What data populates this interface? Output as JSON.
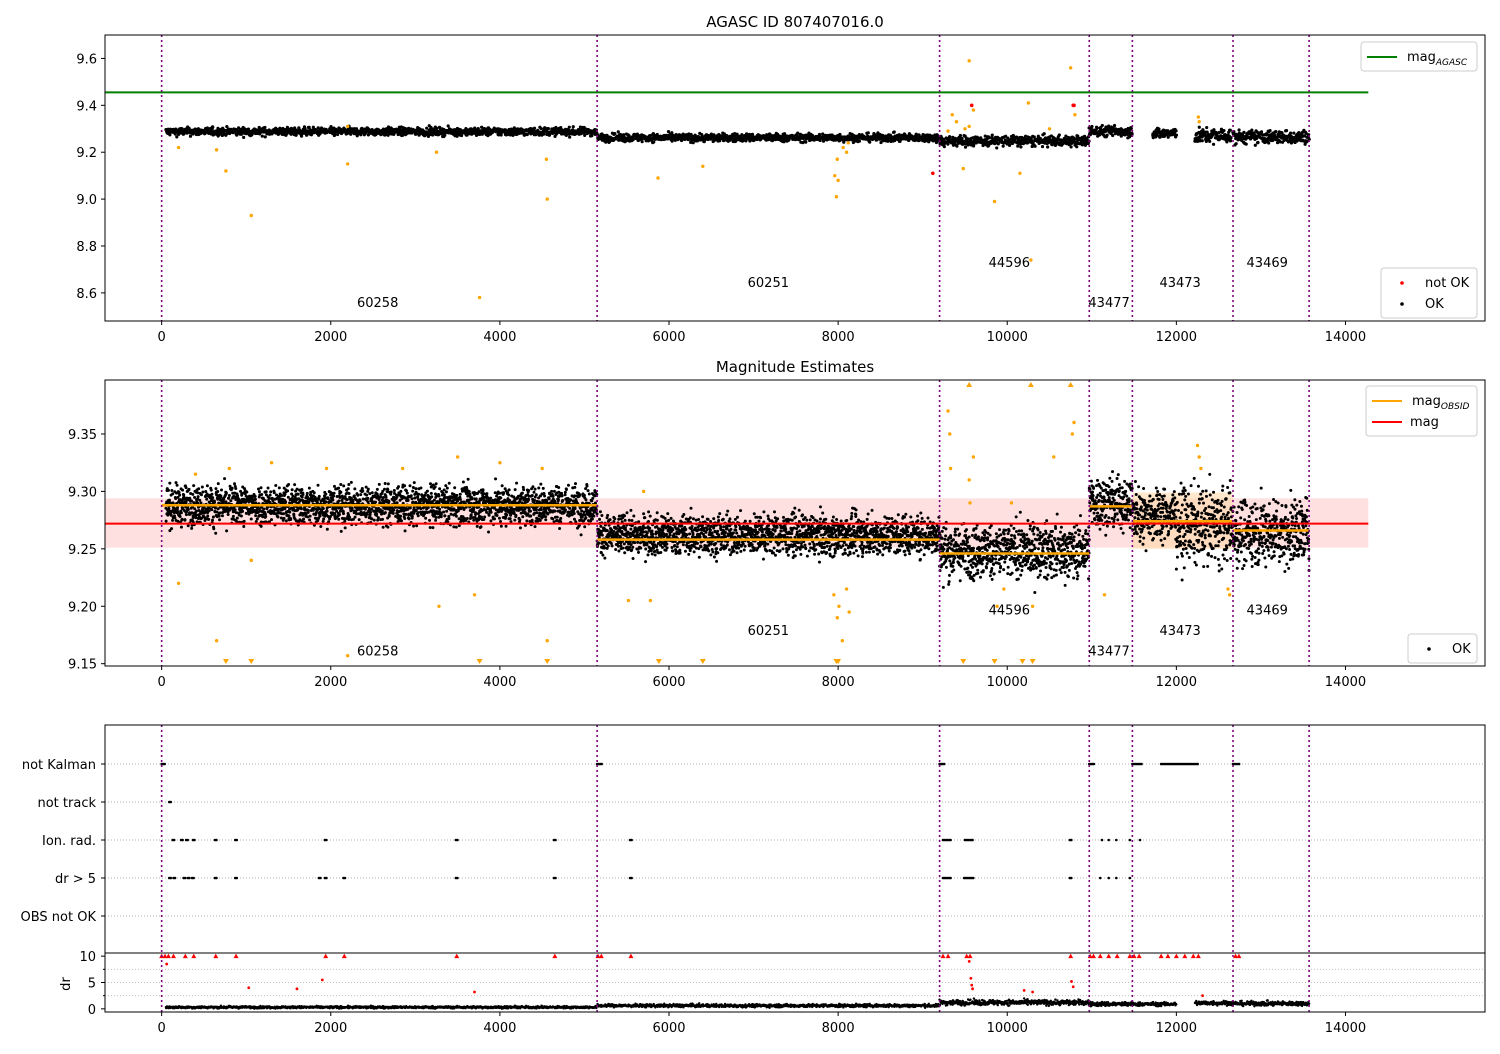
{
  "chart_data": [
    {
      "id": "top",
      "type": "scatter",
      "title": "AGASC ID 807407016.0",
      "xlim": [
        -670,
        15650
      ],
      "ylim": [
        8.48,
        9.7
      ],
      "x_ticks": [
        0,
        2000,
        4000,
        6000,
        8000,
        10000,
        12000,
        14000
      ],
      "x_tick_labels": [
        "0",
        "2000",
        "4000",
        "6000",
        "8000",
        "10000",
        "12000",
        "14000"
      ],
      "y_ticks": [
        8.6,
        8.8,
        9.0,
        9.2,
        9.4,
        9.6
      ],
      "y_tick_labels": [
        "8.6",
        "8.8",
        "9.0",
        "9.2",
        "9.4",
        "9.6"
      ],
      "obs_boundaries": [
        0,
        5150,
        9200,
        10970,
        11480,
        12670,
        13570
      ],
      "obsid_labels": [
        {
          "text": "60258",
          "x": 2310,
          "y": 8.54
        },
        {
          "text": "60251",
          "x": 6930,
          "y": 8.625
        },
        {
          "text": "44596",
          "x": 9780,
          "y": 8.71
        },
        {
          "text": "43477",
          "x": 10960,
          "y": 8.54
        },
        {
          "text": "43473",
          "x": 11800,
          "y": 8.625
        },
        {
          "text": "43469",
          "x": 12830,
          "y": 8.71
        }
      ],
      "mag_agasc": {
        "value": 9.455,
        "x_range": [
          -670,
          14270
        ],
        "color": "#008000"
      },
      "legends": [
        {
          "loc": "upper right",
          "entries": [
            {
              "kind": "line",
              "color": "#008000",
              "base": "mag",
              "sub": "AGASC"
            }
          ]
        },
        {
          "loc": "lower right",
          "entries": [
            {
              "kind": "dot",
              "color": "#ff0000",
              "text": "not OK"
            },
            {
              "kind": "dot",
              "color": "#000000",
              "text": "OK"
            }
          ]
        }
      ],
      "ok_segments": [
        {
          "x": [
            50,
            5150
          ],
          "level": 9.288,
          "spread": 0.012
        },
        {
          "x": [
            5150,
            9200
          ],
          "level": 9.262,
          "spread": 0.012
        },
        {
          "x": [
            9200,
            10970
          ],
          "level": 9.248,
          "spread": 0.016
        },
        {
          "x": [
            10970,
            11480
          ],
          "level": 9.29,
          "spread": 0.016
        },
        {
          "x": [
            11720,
            12000
          ],
          "level": 9.28,
          "spread": 0.016
        },
        {
          "x": [
            12220,
            12650
          ],
          "level": 9.27,
          "spread": 0.022
        },
        {
          "x": [
            12670,
            13570
          ],
          "level": 9.265,
          "spread": 0.02
        }
      ],
      "orange_points": [
        [
          760,
          9.12
        ],
        [
          1060,
          8.93
        ],
        [
          2200,
          9.15
        ],
        [
          3760,
          8.58
        ],
        [
          4560,
          9.0
        ],
        [
          4550,
          9.17
        ],
        [
          200,
          9.22
        ],
        [
          650,
          9.21
        ],
        [
          3250,
          9.2
        ],
        [
          5870,
          9.09
        ],
        [
          6400,
          9.14
        ],
        [
          7980,
          9.01
        ],
        [
          7960,
          9.1
        ],
        [
          8000,
          9.08
        ],
        [
          7990,
          9.17
        ],
        [
          8060,
          9.22
        ],
        [
          9480,
          9.13
        ],
        [
          9550,
          9.59
        ],
        [
          9850,
          8.99
        ],
        [
          10280,
          8.74
        ],
        [
          10750,
          9.56
        ],
        [
          10250,
          9.41
        ],
        [
          9350,
          9.36
        ],
        [
          9400,
          9.33
        ],
        [
          9600,
          9.38
        ],
        [
          10150,
          9.11
        ],
        [
          10800,
          9.36
        ],
        [
          12260,
          9.35
        ],
        [
          12270,
          9.33
        ],
        [
          9550,
          9.31
        ],
        [
          9500,
          9.3
        ],
        [
          8100,
          9.2
        ],
        [
          8120,
          9.24
        ],
        [
          10500,
          9.3
        ],
        [
          9300,
          9.29
        ],
        [
          2200,
          9.31
        ]
      ],
      "red_points": [
        [
          9120,
          9.11
        ],
        [
          9580,
          9.4
        ],
        [
          10780,
          9.4
        ],
        [
          10790,
          9.4
        ]
      ]
    },
    {
      "id": "middle",
      "type": "scatter",
      "title": "Magnitude Estimates",
      "xlim": [
        -670,
        15650
      ],
      "ylim": [
        9.148,
        9.397
      ],
      "x_ticks": [
        0,
        2000,
        4000,
        6000,
        8000,
        10000,
        12000,
        14000
      ],
      "x_tick_labels": [
        "0",
        "2000",
        "4000",
        "6000",
        "8000",
        "10000",
        "12000",
        "14000"
      ],
      "y_ticks": [
        9.15,
        9.2,
        9.25,
        9.3,
        9.35
      ],
      "y_tick_labels": [
        "9.15",
        "9.20",
        "9.25",
        "9.30",
        "9.35"
      ],
      "obs_boundaries": [
        0,
        5150,
        9200,
        10970,
        11480,
        12670,
        13570
      ],
      "obsid_labels": [
        {
          "text": "60258",
          "x": 2310,
          "y": 9.157
        },
        {
          "text": "60251",
          "x": 6930,
          "y": 9.175
        },
        {
          "text": "44596",
          "x": 9780,
          "y": 9.193
        },
        {
          "text": "43477",
          "x": 10960,
          "y": 9.157
        },
        {
          "text": "43473",
          "x": 11800,
          "y": 9.175
        },
        {
          "text": "43469",
          "x": 12830,
          "y": 9.193
        }
      ],
      "mag": {
        "value": 9.272,
        "band": [
          9.251,
          9.294
        ],
        "x_range": [
          -670,
          14270
        ],
        "color": "#ff0000",
        "band_color": "#ffcccc"
      },
      "mag_obsid": [
        {
          "x": [
            0,
            5150
          ],
          "value": 9.288
        },
        {
          "x": [
            5150,
            9200
          ],
          "value": 9.258
        },
        {
          "x": [
            9200,
            10970
          ],
          "value": 9.246
        },
        {
          "x": [
            10970,
            11480
          ],
          "value": 9.287
        },
        {
          "x": [
            11480,
            12670
          ],
          "value": 9.274,
          "band": [
            9.25,
            9.299
          ]
        },
        {
          "x": [
            12670,
            13570
          ],
          "value": 9.266
        }
      ],
      "legends": [
        {
          "loc": "upper right",
          "entries": [
            {
              "kind": "line",
              "color": "#ffa500",
              "base": "mag",
              "sub": "OBSID"
            },
            {
              "kind": "line",
              "color": "#ff0000",
              "text": "mag"
            }
          ]
        },
        {
          "loc": "lower right",
          "entries": [
            {
              "kind": "dot",
              "color": "#000000",
              "text": "OK"
            }
          ]
        }
      ],
      "ok_segments": [
        {
          "x": [
            50,
            5150
          ],
          "level": 9.288,
          "spread": 0.012
        },
        {
          "x": [
            5150,
            9200
          ],
          "level": 9.262,
          "spread": 0.012
        },
        {
          "x": [
            9200,
            10970
          ],
          "level": 9.248,
          "spread": 0.016
        },
        {
          "x": [
            10970,
            11480
          ],
          "level": 9.29,
          "spread": 0.016
        },
        {
          "x": [
            11480,
            12000
          ],
          "level": 9.28,
          "spread": 0.016
        },
        {
          "x": [
            12000,
            12670
          ],
          "level": 9.27,
          "spread": 0.022
        },
        {
          "x": [
            12670,
            13570
          ],
          "level": 9.265,
          "spread": 0.02
        }
      ],
      "orange_points": [
        [
          200,
          9.22
        ],
        [
          650,
          9.17
        ],
        [
          1060,
          9.24
        ],
        [
          3280,
          9.2
        ],
        [
          3700,
          9.21
        ],
        [
          4560,
          9.17
        ],
        [
          2200,
          9.157
        ],
        [
          5520,
          9.205
        ],
        [
          5700,
          9.3
        ],
        [
          5780,
          9.205
        ],
        [
          7950,
          9.21
        ],
        [
          7990,
          9.19
        ],
        [
          8010,
          9.2
        ],
        [
          8050,
          9.17
        ],
        [
          8100,
          9.215
        ],
        [
          8130,
          9.195
        ],
        [
          9300,
          9.37
        ],
        [
          9320,
          9.35
        ],
        [
          9330,
          9.32
        ],
        [
          9550,
          9.31
        ],
        [
          9560,
          9.29
        ],
        [
          9600,
          9.33
        ],
        [
          9880,
          9.2
        ],
        [
          9960,
          9.215
        ],
        [
          10050,
          9.29
        ],
        [
          10300,
          9.2
        ],
        [
          10550,
          9.33
        ],
        [
          10770,
          9.35
        ],
        [
          10790,
          9.36
        ],
        [
          11150,
          9.21
        ],
        [
          12250,
          9.34
        ],
        [
          12270,
          9.33
        ],
        [
          12290,
          9.32
        ],
        [
          12610,
          9.215
        ],
        [
          12630,
          9.21
        ],
        [
          1950,
          9.32
        ],
        [
          2850,
          9.32
        ],
        [
          3500,
          9.33
        ],
        [
          4000,
          9.325
        ],
        [
          4500,
          9.32
        ],
        [
          400,
          9.315
        ],
        [
          800,
          9.32
        ],
        [
          1300,
          9.325
        ]
      ],
      "triangles_down": [
        760,
        1060,
        3760,
        4560,
        5880,
        6400,
        7980,
        8000,
        9480,
        9850,
        10180,
        10300
      ],
      "triangles_up": [
        9550,
        10280,
        10750
      ]
    },
    {
      "id": "bottom",
      "type": "scatter",
      "xlim": [
        -670,
        15650
      ],
      "rows": [
        "not Kalman",
        "not track",
        "Ion. rad.",
        "dr > 5",
        "OBS not OK"
      ],
      "obs_boundaries": [
        0,
        5150,
        9200,
        10970,
        11480,
        12670,
        13570
      ],
      "flags": {
        "not Kalman": [
          [
            0,
            40
          ],
          [
            5150,
            5220
          ],
          [
            9200,
            9260
          ],
          [
            10970,
            11040
          ],
          [
            11480,
            11590
          ],
          [
            11820,
            12260
          ],
          [
            12670,
            12750
          ]
        ],
        "not track": [
          [
            90,
            110
          ]
        ],
        "Ion. rad.": [
          [
            130,
            150
          ],
          [
            230,
            250
          ],
          [
            290,
            310
          ],
          [
            370,
            390
          ],
          [
            630,
            650
          ],
          [
            870,
            890
          ],
          [
            1930,
            1950
          ],
          [
            3480,
            3500
          ],
          [
            4640,
            4660
          ],
          [
            5540,
            5560
          ],
          [
            9240,
            9330
          ],
          [
            9500,
            9600
          ],
          [
            10740,
            10770
          ],
          [
            11120,
            11130
          ],
          [
            11200,
            11210
          ],
          [
            11290,
            11300
          ],
          [
            11450,
            11460
          ],
          [
            11570,
            11580
          ]
        ],
        "dr > 5": [
          [
            90,
            110
          ],
          [
            140,
            160
          ],
          [
            260,
            280
          ],
          [
            310,
            330
          ],
          [
            360,
            380
          ],
          [
            630,
            650
          ],
          [
            870,
            890
          ],
          [
            1860,
            1880
          ],
          [
            1930,
            1950
          ],
          [
            2150,
            2170
          ],
          [
            3480,
            3500
          ],
          [
            4640,
            4660
          ],
          [
            5540,
            5560
          ],
          [
            9240,
            9330
          ],
          [
            9490,
            9610
          ],
          [
            10740,
            10770
          ],
          [
            11100,
            11110
          ],
          [
            11200,
            11210
          ],
          [
            11290,
            11300
          ],
          [
            11450,
            11460
          ]
        ]
      },
      "dr": {
        "ylabel": "dr",
        "y_ticks": [
          0,
          5,
          10
        ],
        "y_tick_labels": [
          "0",
          "5",
          "10"
        ],
        "ylim": [
          -0.6,
          10.6
        ],
        "segments": [
          {
            "x": [
              50,
              5150
            ],
            "level": 0.3,
            "spread": 0.25
          },
          {
            "x": [
              5150,
              9200
            ],
            "level": 0.6,
            "spread": 0.35
          },
          {
            "x": [
              9200,
              10970
            ],
            "level": 1.2,
            "spread": 0.6
          },
          {
            "x": [
              10970,
              11480
            ],
            "level": 0.9,
            "spread": 0.5
          },
          {
            "x": [
              11480,
              12000
            ],
            "level": 0.9,
            "spread": 0.4
          },
          {
            "x": [
              12220,
              12670
            ],
            "level": 1.1,
            "spread": 0.5
          },
          {
            "x": [
              12670,
              13570
            ],
            "level": 1.0,
            "spread": 0.5
          }
        ],
        "red_markers_top": [
          0,
          40,
          80,
          140,
          280,
          380,
          640,
          880,
          1940,
          2160,
          3490,
          4650,
          5160,
          5200,
          5550,
          9240,
          9300,
          9520,
          9560,
          10750,
          10980,
          11020,
          11100,
          11200,
          11300,
          11450,
          11500,
          11560,
          11820,
          11900,
          12000,
          12100,
          12200,
          12260,
          12700,
          12740
        ],
        "red_points": [
          [
            60,
            8.5
          ],
          [
            1900,
            5.5
          ],
          [
            1030,
            4.0
          ],
          [
            1600,
            3.8
          ],
          [
            3700,
            3.2
          ],
          [
            9550,
            9.0
          ],
          [
            9570,
            5.8
          ],
          [
            9580,
            4.5
          ],
          [
            9590,
            3.8
          ],
          [
            10200,
            3.5
          ],
          [
            10300,
            3.2
          ],
          [
            10760,
            5.2
          ],
          [
            10780,
            4.2
          ],
          [
            12310,
            2.5
          ]
        ]
      }
    }
  ]
}
